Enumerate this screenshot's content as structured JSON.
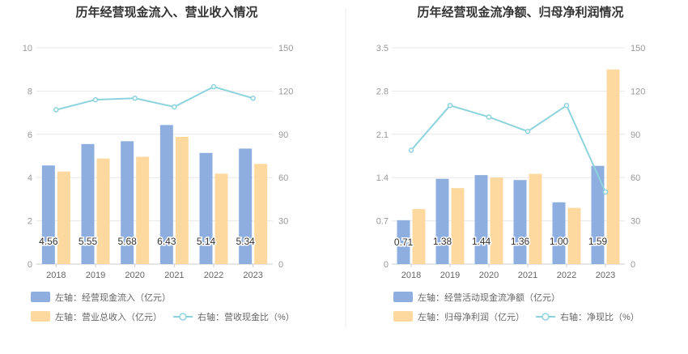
{
  "chart_data": [
    {
      "type": "bar",
      "title": "历年经营现金流入、营业收入情况",
      "categories": [
        "2018",
        "2019",
        "2020",
        "2021",
        "2022",
        "2023"
      ],
      "left_axis": {
        "min": 0,
        "max": 10,
        "ticks": [
          "0",
          "2",
          "4",
          "6",
          "8",
          "10"
        ]
      },
      "right_axis": {
        "min": 0,
        "max": 150,
        "ticks": [
          "0",
          "30",
          "60",
          "90",
          "120",
          "150"
        ]
      },
      "series": [
        {
          "name": "左轴：经营现金流入（亿元）",
          "type": "bar",
          "axis": "left",
          "color": "#8eaedf",
          "values": [
            4.56,
            5.55,
            5.68,
            6.43,
            5.14,
            5.34
          ],
          "labels": [
            "4.56",
            "5.55",
            "5.68",
            "6.43",
            "5.14",
            "5.34"
          ]
        },
        {
          "name": "左轴：营业总收入（亿元）",
          "type": "bar",
          "axis": "left",
          "color": "#fdd9a0",
          "values": [
            4.28,
            4.88,
            4.96,
            5.88,
            4.18,
            4.63
          ]
        },
        {
          "name": "右轴：营收现金比（%）",
          "type": "line",
          "axis": "right",
          "color": "#8dd3dd",
          "values": [
            107,
            114,
            115,
            109,
            123,
            115
          ]
        }
      ]
    },
    {
      "type": "bar",
      "title": "历年经营现金流净额、归母净利润情况",
      "categories": [
        "2018",
        "2019",
        "2020",
        "2021",
        "2022",
        "2023"
      ],
      "left_axis": {
        "min": 0,
        "max": 3.5,
        "ticks": [
          "0",
          "0.7",
          "1.4",
          "2.1",
          "2.8",
          "3.5"
        ]
      },
      "right_axis": {
        "min": 0,
        "max": 150,
        "ticks": [
          "0",
          "30",
          "60",
          "90",
          "120",
          "150"
        ]
      },
      "series": [
        {
          "name": "左轴：经营活动现金流净额（亿元）",
          "type": "bar",
          "axis": "left",
          "color": "#8eaedf",
          "values": [
            0.71,
            1.38,
            1.44,
            1.36,
            1.0,
            1.59
          ],
          "labels": [
            "0.71",
            "1.38",
            "1.44",
            "1.36",
            "1.00",
            "1.59"
          ]
        },
        {
          "name": "左轴：归母净利润（亿元）",
          "type": "bar",
          "axis": "left",
          "color": "#fdd9a0",
          "values": [
            0.89,
            1.23,
            1.4,
            1.46,
            0.91,
            3.15
          ]
        },
        {
          "name": "右轴：净现比（%）",
          "type": "line",
          "axis": "right",
          "color": "#8dd3dd",
          "values": [
            79,
            110,
            102,
            92,
            110,
            50
          ]
        }
      ]
    }
  ]
}
